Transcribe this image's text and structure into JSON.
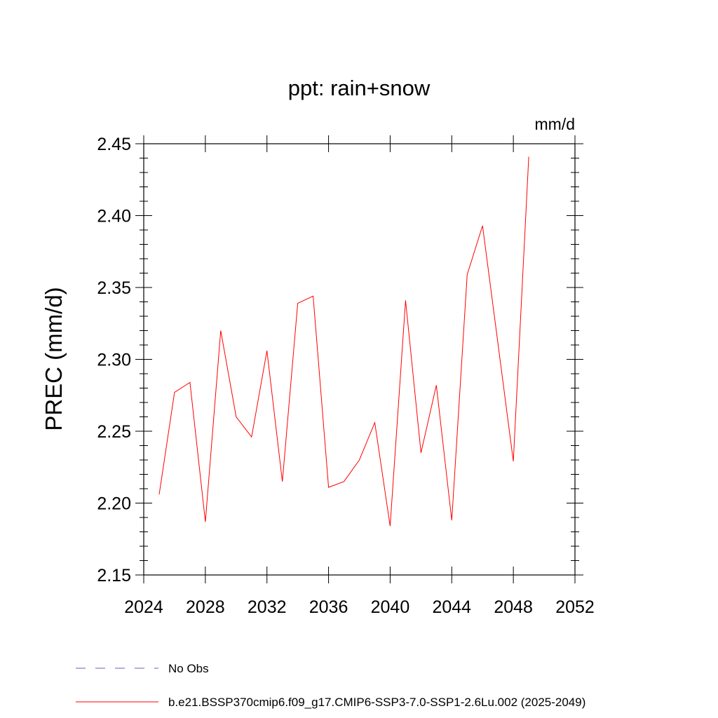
{
  "chart_data": {
    "type": "line",
    "title": "ppt: rain+snow",
    "units": "mm/d",
    "ylabel": "PREC  (mm/d)",
    "xlabel": "",
    "xlim": [
      2024,
      2052
    ],
    "ylim": [
      2.15,
      2.45
    ],
    "xticks": [
      2024,
      2028,
      2032,
      2036,
      2040,
      2044,
      2048,
      2052
    ],
    "yticks": [
      "2.15",
      "2.20",
      "2.25",
      "2.30",
      "2.35",
      "2.40",
      "2.45"
    ],
    "x": [
      2025,
      2026,
      2027,
      2028,
      2029,
      2030,
      2031,
      2032,
      2033,
      2034,
      2035,
      2036,
      2037,
      2038,
      2039,
      2040,
      2041,
      2042,
      2043,
      2044,
      2045,
      2046,
      2047,
      2048,
      2049
    ],
    "series": [
      {
        "name": "b.e21.BSSP370cmip6.f09_g17.CMIP6-SSP3-7.0-SSP1-2.6Lu.002 (2025-2049)",
        "color": "#ff0000",
        "values": [
          2.206,
          2.277,
          2.284,
          2.187,
          2.32,
          2.26,
          2.246,
          2.306,
          2.215,
          2.339,
          2.344,
          2.211,
          2.215,
          2.23,
          2.256,
          2.184,
          2.341,
          2.235,
          2.282,
          2.188,
          2.359,
          2.393,
          2.311,
          2.229,
          2.441
        ]
      }
    ],
    "legend": [
      {
        "label": "No Obs",
        "color": "#6a5acd",
        "style": "dashed"
      },
      {
        "label": "b.e21.BSSP370cmip6.f09_g17.CMIP6-SSP3-7.0-SSP1-2.6Lu.002 (2025-2049)",
        "color": "#ff0000",
        "style": "solid"
      }
    ],
    "legend_position": "bottom",
    "grid": false
  }
}
